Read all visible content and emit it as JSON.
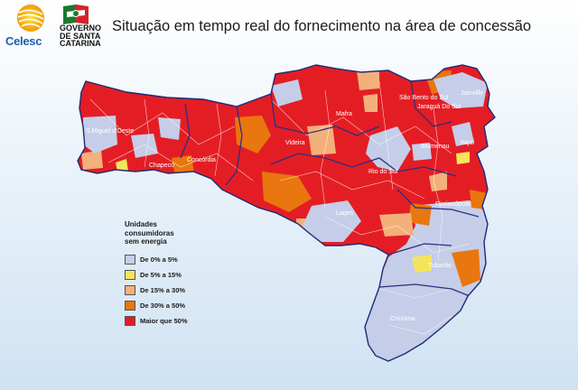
{
  "header": {
    "celesc_text": "Celesc",
    "gov_line1": "GOVERNO",
    "gov_line2": "DE SANTA",
    "gov_line3": "CATARINA",
    "title": "Situação em tempo real do fornecimento na área de concessão"
  },
  "legend": {
    "title_line1": "Unidades",
    "title_line2": "consumidoras",
    "title_line3": "sem energia",
    "items": [
      {
        "label": "De 0% a 5%",
        "color": "#c5cde8"
      },
      {
        "label": "De 5% a 15%",
        "color": "#f5e55a"
      },
      {
        "label": "De 15% a 30%",
        "color": "#f4b07a"
      },
      {
        "label": "De 30% a 50%",
        "color": "#e9760e"
      },
      {
        "label": "Maior que 50%",
        "color": "#e41d24"
      }
    ]
  },
  "cities": {
    "sao_miguel": "S.Miguel d'Oeste",
    "concordia": "Concórdia",
    "chapeco": "Chapecó",
    "videira": "Videira",
    "mafra": "Mafra",
    "joinville": "Joinville",
    "sao_bento": "São Bento do Sul",
    "jaragua": "Jaraguá Do Sul",
    "blumenau": "Blumenau",
    "itajai": "Itajaí",
    "rio_do_sul": "Rio do Sul",
    "lages": "Lages",
    "florianopolis": "Florianópolis",
    "tubarao": "Tubarão",
    "criciuma": "Criciúma"
  }
}
